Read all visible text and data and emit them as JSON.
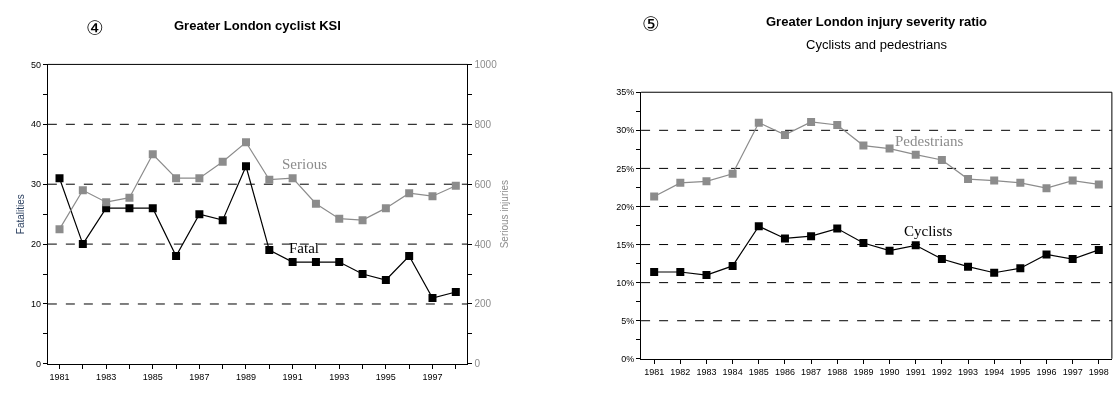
{
  "chart_data": [
    {
      "type": "line",
      "title": "Greater London cyclist KSI",
      "annotations": [
        "④"
      ],
      "ylabel": "Fatalities",
      "y2label": "Serious injuries",
      "x": [
        1981,
        1982,
        1983,
        1984,
        1985,
        1986,
        1987,
        1988,
        1989,
        1990,
        1991,
        1992,
        1993,
        1994,
        1995,
        1996,
        1997,
        1998
      ],
      "series": [
        {
          "name": "Fatal",
          "color": "#000000",
          "values": [
            31,
            20,
            26,
            26,
            26,
            18,
            25,
            24,
            33,
            19,
            17,
            17,
            17,
            15,
            14,
            18,
            11,
            12
          ]
        },
        {
          "name": "Serious",
          "color": "#8c8c8c",
          "axis": "y2",
          "values": [
            450,
            580,
            540,
            555,
            700,
            620,
            620,
            675,
            740,
            615,
            620,
            535,
            485,
            480,
            520,
            570,
            560,
            595
          ]
        }
      ],
      "xlim": [
        1980.5,
        1998.5
      ],
      "xticks": [
        1981,
        {
          "value": 1982,
          "label": null
        },
        1983,
        {
          "value": 1984,
          "label": null
        },
        1985,
        {
          "value": 1986,
          "label": null
        },
        1987,
        {
          "value": 1988,
          "label": null
        },
        1989,
        {
          "value": 1990,
          "label": null
        },
        1991,
        {
          "value": 1992,
          "label": null
        },
        1993,
        {
          "value": 1994,
          "label": null
        },
        1995,
        {
          "value": 1996,
          "label": null
        },
        1997,
        {
          "value": 1998,
          "label": null
        }
      ],
      "ylim": [
        0,
        50
      ],
      "yticks": [
        0,
        {
          "value": 5,
          "label": null
        },
        10,
        {
          "value": 15,
          "label": null
        },
        20,
        {
          "value": 25,
          "label": null
        },
        30,
        {
          "value": 35,
          "label": null
        },
        40,
        {
          "value": 45,
          "label": null
        },
        50
      ],
      "y2lim": [
        0,
        1000
      ],
      "y2ticks": [
        0,
        {
          "value": 100,
          "label": null
        },
        200,
        {
          "value": 300,
          "label": null
        },
        400,
        {
          "value": 500,
          "label": null
        },
        600,
        {
          "value": 700,
          "label": null
        },
        800,
        {
          "value": 900,
          "label": null
        },
        1000
      ],
      "grid": "y",
      "legend": false,
      "marker": "square",
      "line_style": "solid"
    },
    {
      "type": "line",
      "title": "Greater London injury severity ratio",
      "subtitle": "Cyclists and pedestrians",
      "annotations": [
        "⑤"
      ],
      "x": [
        1981,
        1982,
        1983,
        1984,
        1985,
        1986,
        1987,
        1988,
        1989,
        1990,
        1991,
        1992,
        1993,
        1994,
        1995,
        1996,
        1997,
        1998
      ],
      "series": [
        {
          "name": "Pedestrians",
          "color": "#8c8c8c",
          "values": [
            21.3,
            23.1,
            23.3,
            24.3,
            31.0,
            29.4,
            31.1,
            30.7,
            28.0,
            27.6,
            26.8,
            26.1,
            23.6,
            23.4,
            23.1,
            22.4,
            23.4,
            22.9
          ]
        },
        {
          "name": "Cyclists",
          "color": "#000000",
          "values": [
            11.4,
            11.4,
            11.0,
            12.2,
            17.4,
            15.8,
            16.1,
            17.1,
            15.2,
            14.2,
            14.9,
            13.1,
            12.1,
            11.3,
            11.9,
            13.7,
            13.1,
            14.3
          ]
        }
      ],
      "xlim": [
        1980.5,
        1998.5
      ],
      "xticks": [
        1981,
        1982,
        1983,
        1984,
        1985,
        1986,
        1987,
        1988,
        1989,
        1990,
        1991,
        1992,
        1993,
        1994,
        1995,
        1996,
        1997,
        1998
      ],
      "ylim": [
        0,
        35
      ],
      "yticks": [
        {
          "value": 0,
          "label": "0%"
        },
        {
          "value": 2.5,
          "label": null
        },
        {
          "value": 5,
          "label": "5%"
        },
        {
          "value": 7.5,
          "label": null
        },
        {
          "value": 10,
          "label": "10%"
        },
        {
          "value": 12.5,
          "label": null
        },
        {
          "value": 15,
          "label": "15%"
        },
        {
          "value": 17.5,
          "label": null
        },
        {
          "value": 20,
          "label": "20%"
        },
        {
          "value": 22.5,
          "label": null
        },
        {
          "value": 25,
          "label": "25%"
        },
        {
          "value": 27.5,
          "label": null
        },
        {
          "value": 30,
          "label": "30%"
        },
        {
          "value": 32.5,
          "label": null
        },
        {
          "value": 35,
          "label": "35%"
        }
      ],
      "grid": "y",
      "legend": false,
      "marker": "square",
      "line_style": "solid"
    }
  ]
}
